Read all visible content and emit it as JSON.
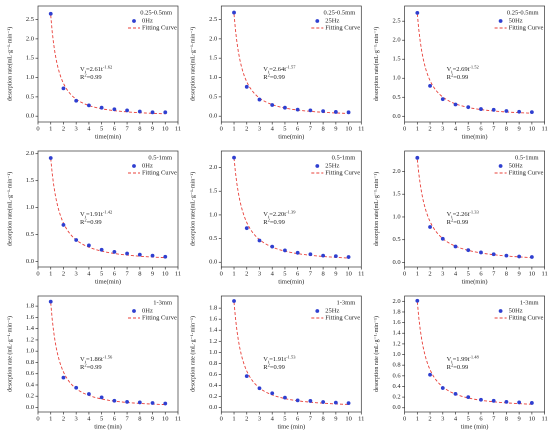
{
  "chart_data": [
    {
      "type": "scatter-fit",
      "title": "0.25-0.5mm",
      "xlabel": "time(min)",
      "ylabel": "desorption rate(mL·g⁻¹·min⁻¹)",
      "x": [
        1,
        2,
        3,
        4,
        5,
        6,
        7,
        8,
        9,
        10
      ],
      "series": [
        {
          "name": "0Hz",
          "color": "#2f3fd0",
          "values": [
            2.65,
            0.72,
            0.4,
            0.28,
            0.22,
            0.18,
            0.15,
            0.12,
            0.1,
            0.1
          ]
        }
      ],
      "fit": {
        "name": "Fitting Curve",
        "color": "#e8403a",
        "a": 2.61,
        "b": -1.62
      },
      "annotation": {
        "v": "V",
        "sub": "t",
        "eq": "=2.61t",
        "sup": "-1.62"
      },
      "r2": {
        "r": "R",
        "sup": "2",
        "eq": "=0.99"
      },
      "xlim": [
        0,
        11
      ],
      "xticks": [
        0,
        1,
        2,
        3,
        4,
        5,
        6,
        7,
        8,
        9,
        10,
        11
      ],
      "ylim": [
        -0.15,
        2.85
      ],
      "yticks": [
        {
          "value": 0,
          "label": "0.0"
        },
        0.5,
        {
          "value": 1,
          "label": "1.0"
        },
        1.5,
        {
          "value": 2,
          "label": "2.0"
        },
        2.5
      ]
    },
    {
      "type": "scatter-fit",
      "title": "0.25-0.5mm",
      "xlabel": "time(min)",
      "ylabel": "desorption rate(mL·g⁻¹·min⁻¹)",
      "x": [
        1,
        2,
        3,
        4,
        5,
        6,
        7,
        8,
        9,
        10
      ],
      "series": [
        {
          "name": "25Hz",
          "color": "#2f3fd0",
          "values": [
            2.68,
            0.76,
            0.43,
            0.29,
            0.22,
            0.17,
            0.15,
            0.13,
            0.11,
            0.1
          ]
        }
      ],
      "fit": {
        "name": "Fitting Curve",
        "color": "#e8403a",
        "a": 2.64,
        "b": -1.57
      },
      "annotation": {
        "v": "V",
        "sub": "t",
        "eq": "=2.64t",
        "sup": "-1.57"
      },
      "r2": {
        "r": "R",
        "sup": "2",
        "eq": "=0.99"
      },
      "xlim": [
        0,
        11
      ],
      "xticks": [
        0,
        1,
        2,
        3,
        4,
        5,
        6,
        7,
        8,
        9,
        10,
        11
      ],
      "ylim": [
        -0.15,
        2.85
      ],
      "yticks": [
        {
          "value": 0,
          "label": "0.0"
        },
        0.5,
        {
          "value": 1,
          "label": "1.0"
        },
        1.5,
        {
          "value": 2,
          "label": "2.0"
        },
        2.5
      ]
    },
    {
      "type": "scatter-fit",
      "title": "0.25-0.5mm",
      "xlabel": "time(min)",
      "ylabel": "desorption rate(mL·g⁻¹·min⁻¹)",
      "x": [
        1,
        2,
        3,
        4,
        5,
        6,
        7,
        8,
        9,
        10
      ],
      "series": [
        {
          "name": "50Hz",
          "color": "#2f3fd0",
          "values": [
            2.72,
            0.8,
            0.45,
            0.31,
            0.24,
            0.19,
            0.17,
            0.14,
            0.12,
            0.11
          ]
        }
      ],
      "fit": {
        "name": "Fitting Curve",
        "color": "#e8403a",
        "a": 2.69,
        "b": -1.52
      },
      "annotation": {
        "v": "V",
        "sub": "t",
        "eq": "=2.69t",
        "sup": "-1.52"
      },
      "r2": {
        "r": "R",
        "sup": "2",
        "eq": "=0.99"
      },
      "xlim": [
        0,
        11
      ],
      "xticks": [
        0,
        1,
        2,
        3,
        4,
        5,
        6,
        7,
        8,
        9,
        10,
        11
      ],
      "ylim": [
        -0.15,
        2.9
      ],
      "yticks": [
        {
          "value": 0,
          "label": "0.0"
        },
        0.5,
        {
          "value": 1,
          "label": "1.0"
        },
        1.5,
        {
          "value": 2,
          "label": "2.0"
        },
        2.5
      ]
    },
    {
      "type": "scatter-fit",
      "title": "0.5-1mm",
      "xlabel": "time(min)",
      "ylabel": "desorption rate(mL·g⁻¹·min⁻¹)",
      "x": [
        1,
        2,
        3,
        4,
        5,
        6,
        7,
        8,
        9,
        10
      ],
      "series": [
        {
          "name": "0Hz",
          "color": "#2f3fd0",
          "values": [
            1.92,
            0.68,
            0.4,
            0.3,
            0.22,
            0.18,
            0.15,
            0.13,
            0.11,
            0.09
          ]
        }
      ],
      "fit": {
        "name": "Fitting Curve",
        "color": "#e8403a",
        "a": 1.91,
        "b": -1.42
      },
      "annotation": {
        "v": "V",
        "sub": "t",
        "eq": "=1.91t",
        "sup": "-1.42"
      },
      "r2": {
        "r": "R",
        "sup": "2",
        "eq": "=0.99"
      },
      "xlim": [
        0,
        11
      ],
      "xticks": [
        0,
        1,
        2,
        3,
        4,
        5,
        6,
        7,
        8,
        9,
        10,
        11
      ],
      "ylim": [
        -0.1,
        2.05
      ],
      "yticks": [
        {
          "value": 0,
          "label": "0.0"
        },
        0.5,
        {
          "value": 1,
          "label": "1.0"
        },
        1.5,
        {
          "value": 2,
          "label": "2.0"
        }
      ]
    },
    {
      "type": "scatter-fit",
      "title": "0.5-1mm",
      "xlabel": "time(min)",
      "ylabel": "desorption rate(mL·g⁻¹·min⁻¹)",
      "x": [
        1,
        2,
        3,
        4,
        5,
        6,
        7,
        8,
        9,
        10
      ],
      "series": [
        {
          "name": "25Hz",
          "color": "#2f3fd0",
          "values": [
            2.21,
            0.72,
            0.46,
            0.33,
            0.25,
            0.2,
            0.17,
            0.14,
            0.13,
            0.11
          ]
        }
      ],
      "fit": {
        "name": "Fitting Curve",
        "color": "#e8403a",
        "a": 2.2,
        "b": -1.39
      },
      "annotation": {
        "v": "V",
        "sub": "t",
        "eq": "=2.20t",
        "sup": "-1.39"
      },
      "r2": {
        "r": "R",
        "sup": "2",
        "eq": "=0.99"
      },
      "xlim": [
        0,
        11
      ],
      "xticks": [
        0,
        1,
        2,
        3,
        4,
        5,
        6,
        7,
        8,
        9,
        10,
        11
      ],
      "ylim": [
        -0.1,
        2.35
      ],
      "yticks": [
        {
          "value": 0,
          "label": "0.0"
        },
        0.5,
        {
          "value": 1,
          "label": "1.0"
        },
        1.5,
        {
          "value": 2,
          "label": "2.0"
        }
      ]
    },
    {
      "type": "scatter-fit",
      "title": "0.5-1mm",
      "xlabel": "time(min)",
      "ylabel": "desorption rate(mL·g⁻¹·min⁻¹)",
      "x": [
        1,
        2,
        3,
        4,
        5,
        6,
        7,
        8,
        9,
        10
      ],
      "series": [
        {
          "name": "50Hz",
          "color": "#2f3fd0",
          "values": [
            2.3,
            0.78,
            0.52,
            0.35,
            0.27,
            0.22,
            0.18,
            0.15,
            0.13,
            0.12
          ]
        }
      ],
      "fit": {
        "name": "Fitting Curve",
        "color": "#e8403a",
        "a": 2.26,
        "b": -1.33
      },
      "annotation": {
        "v": "V",
        "sub": "t",
        "eq": "=2.26t",
        "sup": "-1.33"
      },
      "r2": {
        "r": "R",
        "sup": "2",
        "eq": "=0.99"
      },
      "xlim": [
        0,
        11
      ],
      "xticks": [
        0,
        1,
        2,
        3,
        4,
        5,
        6,
        7,
        8,
        9,
        10,
        11
      ],
      "ylim": [
        -0.1,
        2.45
      ],
      "yticks": [
        {
          "value": 0,
          "label": "0.0"
        },
        0.5,
        {
          "value": 1,
          "label": "1.0"
        },
        1.5,
        {
          "value": 2,
          "label": "2.0"
        }
      ]
    },
    {
      "type": "scatter-fit",
      "title": "1-3mm",
      "xlabel": "time (min)",
      "ylabel": "desorption rate (mL·g⁻¹·min⁻¹)",
      "x": [
        1,
        2,
        3,
        4,
        5,
        6,
        7,
        8,
        9,
        10
      ],
      "series": [
        {
          "name": "0Hz",
          "color": "#2f3fd0",
          "values": [
            1.88,
            0.53,
            0.35,
            0.24,
            0.18,
            0.12,
            0.1,
            0.09,
            0.08,
            0.07
          ]
        }
      ],
      "fit": {
        "name": "Fitting Curve",
        "color": "#e8403a",
        "a": 1.86,
        "b": -1.56
      },
      "annotation": {
        "v": "V",
        "sub": "t",
        "eq": "=1.86t",
        "sup": "-1.56"
      },
      "r2": {
        "r": "R",
        "sup": "2",
        "eq": "=0.99"
      },
      "xlim": [
        0,
        11
      ],
      "xticks": [
        0,
        1,
        2,
        3,
        4,
        5,
        6,
        7,
        8,
        9,
        10,
        11
      ],
      "ylim": [
        -0.08,
        1.98
      ],
      "yticks": [
        {
          "value": 0,
          "label": "0.0"
        },
        0.2,
        0.4,
        0.6,
        0.8,
        {
          "value": 1,
          "label": "1.0"
        },
        1.2,
        1.4,
        1.6,
        1.8
      ]
    },
    {
      "type": "scatter-fit",
      "title": "1-3mm",
      "xlabel": "time (min)",
      "ylabel": "desorption rate (mL·g⁻¹·min⁻¹)",
      "x": [
        1,
        2,
        3,
        4,
        5,
        6,
        7,
        8,
        9,
        10
      ],
      "series": [
        {
          "name": "25Hz",
          "color": "#2f3fd0",
          "values": [
            1.93,
            0.57,
            0.35,
            0.26,
            0.18,
            0.13,
            0.12,
            0.1,
            0.09,
            0.08
          ]
        }
      ],
      "fit": {
        "name": "Fitting Curve",
        "color": "#e8403a",
        "a": 1.91,
        "b": -1.53
      },
      "annotation": {
        "v": "V",
        "sub": "t",
        "eq": "=1.91t",
        "sup": "-1.53"
      },
      "r2": {
        "r": "R",
        "sup": "2",
        "eq": "=0.99"
      },
      "xlim": [
        0,
        11
      ],
      "xticks": [
        0,
        1,
        2,
        3,
        4,
        5,
        6,
        7,
        8,
        9,
        10,
        11
      ],
      "ylim": [
        -0.08,
        2.02
      ],
      "yticks": [
        {
          "value": 0,
          "label": "0.0"
        },
        0.2,
        0.4,
        0.6,
        0.8,
        {
          "value": 1,
          "label": "1.0"
        },
        1.2,
        1.4,
        1.6,
        1.8
      ]
    },
    {
      "type": "scatter-fit",
      "title": "1-3mm",
      "xlabel": "time (min)",
      "ylabel": "desorption rate (mL·g⁻¹·min⁻¹)",
      "x": [
        1,
        2,
        3,
        4,
        5,
        6,
        7,
        8,
        9,
        10
      ],
      "series": [
        {
          "name": "50Hz",
          "color": "#2f3fd0",
          "values": [
            2.01,
            0.62,
            0.37,
            0.26,
            0.2,
            0.15,
            0.13,
            0.11,
            0.1,
            0.09
          ]
        }
      ],
      "fit": {
        "name": "Fitting Curve",
        "color": "#e8403a",
        "a": 1.99,
        "b": -1.48
      },
      "annotation": {
        "v": "V",
        "sub": "t",
        "eq": "=1.99t",
        "sup": "-1.48"
      },
      "r2": {
        "r": "R",
        "sup": "2",
        "eq": "=0.99"
      },
      "xlim": [
        0,
        11
      ],
      "xticks": [
        0,
        1,
        2,
        3,
        4,
        5,
        6,
        7,
        8,
        9,
        10,
        11
      ],
      "ylim": [
        -0.08,
        2.1
      ],
      "yticks": [
        {
          "value": 0,
          "label": "0.0"
        },
        0.2,
        0.4,
        0.6,
        0.8,
        {
          "value": 1,
          "label": "1.0"
        },
        1.2,
        1.4,
        1.6,
        1.8,
        {
          "value": 2,
          "label": "2.0"
        }
      ]
    }
  ]
}
